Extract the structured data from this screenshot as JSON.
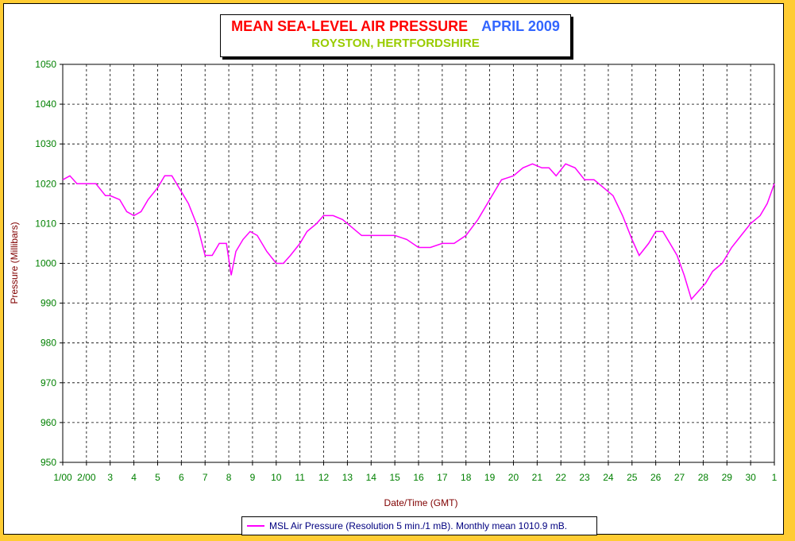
{
  "colors": {
    "background": "#FFCC33",
    "title": "#FF0000",
    "period": "#3366FF",
    "subtitle": "#99CC00",
    "series": "#FF00FF",
    "axis_text": "#008000",
    "axis_label": "#800000",
    "legend_text": "#000080"
  },
  "chart_data": {
    "type": "line",
    "title": "MEAN SEA-LEVEL AIR PRESSURE",
    "title_period": "APRIL 2009",
    "subtitle": "ROYSTON, HERTFORDSHIRE",
    "xlabel": "Date/Time (GMT)",
    "ylabel": "Pressure (Millibars)",
    "ylim": [
      950,
      1050
    ],
    "xlim": [
      1,
      31
    ],
    "yticks": [
      950,
      960,
      970,
      980,
      990,
      1000,
      1010,
      1020,
      1030,
      1040,
      1050
    ],
    "xtick_labels": [
      "1/00",
      "2/00",
      "3",
      "4",
      "5",
      "6",
      "7",
      "8",
      "9",
      "10",
      "11",
      "12",
      "13",
      "14",
      "15",
      "16",
      "17",
      "18",
      "19",
      "20",
      "21",
      "22",
      "23",
      "24",
      "25",
      "26",
      "27",
      "28",
      "29",
      "30",
      "1"
    ],
    "grid": true,
    "legend_position": "bottom",
    "series": [
      {
        "name": "MSL Air Pressure (Resolution 5 min./1 mB). Monthly mean 1010.9 mB.",
        "x": [
          1.0,
          1.3,
          1.6,
          2.0,
          2.4,
          2.8,
          3.0,
          3.4,
          3.7,
          4.0,
          4.3,
          4.6,
          5.0,
          5.3,
          5.6,
          6.0,
          6.3,
          6.7,
          7.0,
          7.3,
          7.6,
          7.9,
          8.1,
          8.3,
          8.6,
          8.9,
          9.2,
          9.6,
          10.0,
          10.3,
          10.6,
          11.0,
          11.3,
          11.7,
          12.0,
          12.4,
          12.8,
          13.2,
          13.6,
          14.0,
          14.5,
          15.0,
          15.5,
          16.0,
          16.5,
          17.0,
          17.5,
          18.0,
          18.5,
          19.0,
          19.5,
          20.0,
          20.4,
          20.8,
          21.2,
          21.5,
          21.8,
          22.2,
          22.6,
          23.0,
          23.4,
          23.8,
          24.2,
          24.6,
          25.0,
          25.3,
          25.7,
          26.0,
          26.3,
          26.6,
          26.9,
          27.2,
          27.5,
          27.8,
          28.1,
          28.4,
          28.8,
          29.2,
          29.6,
          30.0,
          30.4,
          30.7,
          31.0
        ],
        "y": [
          1021,
          1022,
          1020,
          1020,
          1020,
          1017,
          1017,
          1016,
          1013,
          1012,
          1013,
          1016,
          1019,
          1022,
          1022,
          1018,
          1015,
          1009,
          1002,
          1002,
          1005,
          1005,
          997,
          1003,
          1006,
          1008,
          1007,
          1003,
          1000,
          1000,
          1002,
          1005,
          1008,
          1010,
          1012,
          1012,
          1011,
          1009,
          1007,
          1007,
          1007,
          1007,
          1006,
          1004,
          1004,
          1005,
          1005,
          1007,
          1011,
          1016,
          1021,
          1022,
          1024,
          1025,
          1024,
          1024,
          1022,
          1025,
          1024,
          1021,
          1021,
          1019,
          1017,
          1012,
          1006,
          1002,
          1005,
          1008,
          1008,
          1005,
          1002,
          997,
          991,
          993,
          995,
          998,
          1000,
          1004,
          1007,
          1010,
          1012,
          1015,
          1020
        ]
      }
    ]
  }
}
